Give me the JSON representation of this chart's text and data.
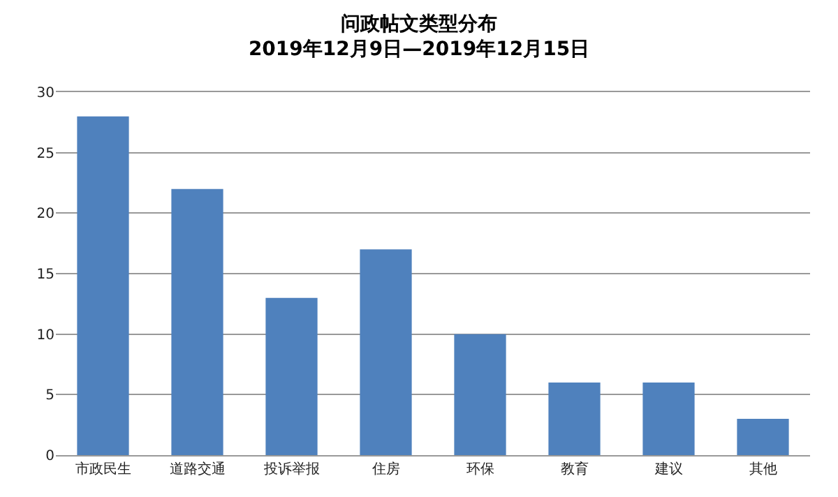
{
  "chart_data": {
    "type": "bar",
    "title": "问政帖文类型分布",
    "subtitle": "2019年12月9日—2019年12月15日",
    "categories": [
      "市政民生",
      "道路交通",
      "投诉举报",
      "住房",
      "环保",
      "教育",
      "建议",
      "其他"
    ],
    "values": [
      28,
      22,
      13,
      17,
      10,
      6,
      6,
      3
    ],
    "color": "#4f81bd",
    "ylim": [
      0,
      30
    ],
    "yticks": [
      0,
      5,
      10,
      15,
      20,
      25,
      30
    ],
    "grid": "y",
    "legend": false
  }
}
